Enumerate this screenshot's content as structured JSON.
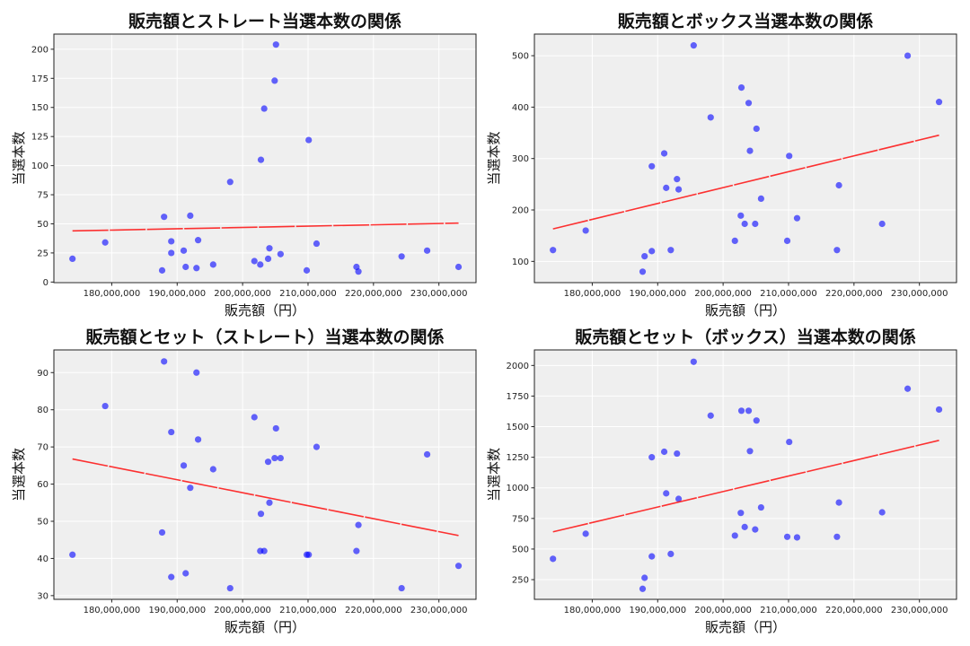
{
  "chart_data": [
    {
      "type": "scatter",
      "title": "販売額とストレート当選本数の関係",
      "xlabel": "販売額（円）",
      "ylabel": "当選本数",
      "xlim": [
        171160000,
        235670000
      ],
      "ylim": [
        -0.5,
        213
      ],
      "xticks": [
        180000000,
        190000000,
        200000000,
        210000000,
        220000000,
        230000000
      ],
      "yticks": [
        0,
        25,
        50,
        75,
        100,
        125,
        150,
        175,
        200
      ],
      "grid": true,
      "trendline": true,
      "point_color": "#0000ff",
      "trend_color": "#ff0000",
      "x": [
        174.0,
        179.0,
        187.7,
        188.0,
        189.1,
        189.1,
        191.0,
        191.3,
        192.0,
        192.95,
        193.2,
        195.5,
        198.1,
        201.8,
        202.7,
        202.8,
        203.3,
        203.9,
        204.1,
        204.9,
        205.1,
        205.8,
        209.8,
        210.1,
        211.3,
        217.4,
        217.7,
        224.3,
        228.2,
        233.0
      ],
      "x_unit_multiplier": 1000000,
      "y": [
        20,
        34,
        10,
        56,
        35,
        25,
        27,
        13,
        57,
        12,
        36,
        15,
        86,
        18,
        15,
        105,
        149,
        20,
        29,
        173,
        204,
        24,
        10,
        122,
        33,
        13,
        9,
        22,
        27,
        13
      ]
    },
    {
      "type": "scatter",
      "title": "販売額とボックス当選本数の関係",
      "xlabel": "販売額（円）",
      "ylabel": "当選本数",
      "xlim": [
        171160000,
        235670000
      ],
      "ylim": [
        58.7,
        542
      ],
      "xticks": [
        180000000,
        190000000,
        200000000,
        210000000,
        220000000,
        230000000
      ],
      "yticks": [
        100,
        200,
        300,
        400,
        500
      ],
      "grid": true,
      "trendline": true,
      "point_color": "#0000ff",
      "trend_color": "#ff0000",
      "x": [
        174.0,
        179.0,
        187.7,
        188.0,
        189.1,
        189.1,
        191.0,
        191.3,
        192.0,
        192.95,
        193.2,
        195.5,
        198.1,
        201.8,
        202.7,
        202.8,
        203.3,
        203.9,
        204.1,
        204.9,
        205.1,
        205.8,
        209.8,
        210.1,
        211.3,
        217.4,
        217.7,
        224.3,
        228.2,
        233.0
      ],
      "x_unit_multiplier": 1000000,
      "y": [
        122,
        160,
        80,
        110,
        285,
        120,
        310,
        243,
        122,
        260,
        240,
        520,
        380,
        140,
        189,
        438,
        173,
        408,
        315,
        173,
        358,
        222,
        140,
        305,
        184,
        122,
        248,
        173,
        500,
        410
      ]
    },
    {
      "type": "scatter",
      "title": "販売額とセット（ストレート）当選本数の関係",
      "xlabel": "販売額（円）",
      "ylabel": "当選本数",
      "xlim": [
        171160000,
        235670000
      ],
      "ylim": [
        29.0,
        96.1
      ],
      "xticks": [
        180000000,
        190000000,
        200000000,
        210000000,
        220000000,
        230000000
      ],
      "yticks": [
        30,
        40,
        50,
        60,
        70,
        80,
        90
      ],
      "grid": true,
      "trendline": true,
      "point_color": "#0000ff",
      "trend_color": "#ff0000",
      "x": [
        174.0,
        179.0,
        187.7,
        188.0,
        189.1,
        189.1,
        191.0,
        191.3,
        192.0,
        192.95,
        193.2,
        195.5,
        198.1,
        201.8,
        202.7,
        202.8,
        203.3,
        203.9,
        204.1,
        204.9,
        205.1,
        205.8,
        209.8,
        210.1,
        211.3,
        217.4,
        217.7,
        224.3,
        228.2,
        233.0
      ],
      "x_unit_multiplier": 1000000,
      "y": [
        41,
        81,
        47,
        93,
        74,
        35,
        65,
        36,
        59,
        90,
        72,
        64,
        32,
        78,
        42,
        52,
        42,
        66,
        55,
        67,
        75,
        67,
        41,
        41,
        70,
        42,
        49,
        32,
        68,
        38
      ]
    },
    {
      "type": "scatter",
      "title": "販売額とセット（ボックス）当選本数の関係",
      "xlabel": "販売額（円）",
      "ylabel": "当選本数",
      "xlim": [
        171160000,
        235670000
      ],
      "ylim": [
        89,
        2127
      ],
      "xticks": [
        180000000,
        190000000,
        200000000,
        210000000,
        220000000,
        230000000
      ],
      "yticks": [
        250,
        500,
        750,
        1000,
        1250,
        1500,
        1750,
        2000
      ],
      "grid": true,
      "trendline": true,
      "point_color": "#0000ff",
      "trend_color": "#ff0000",
      "x": [
        174.0,
        179.0,
        187.7,
        188.0,
        189.1,
        189.1,
        191.0,
        191.3,
        192.0,
        192.95,
        193.2,
        195.5,
        198.1,
        201.8,
        202.7,
        202.8,
        203.3,
        203.9,
        204.1,
        204.9,
        205.1,
        205.8,
        209.8,
        210.1,
        211.3,
        217.4,
        217.7,
        224.3,
        228.2,
        233.0
      ],
      "x_unit_multiplier": 1000000,
      "y": [
        420,
        625,
        175,
        265,
        1250,
        440,
        1295,
        955,
        460,
        1280,
        910,
        2030,
        1590,
        610,
        795,
        1630,
        680,
        1630,
        1300,
        660,
        1550,
        840,
        600,
        1375,
        595,
        600,
        880,
        800,
        1810,
        1640
      ]
    }
  ]
}
